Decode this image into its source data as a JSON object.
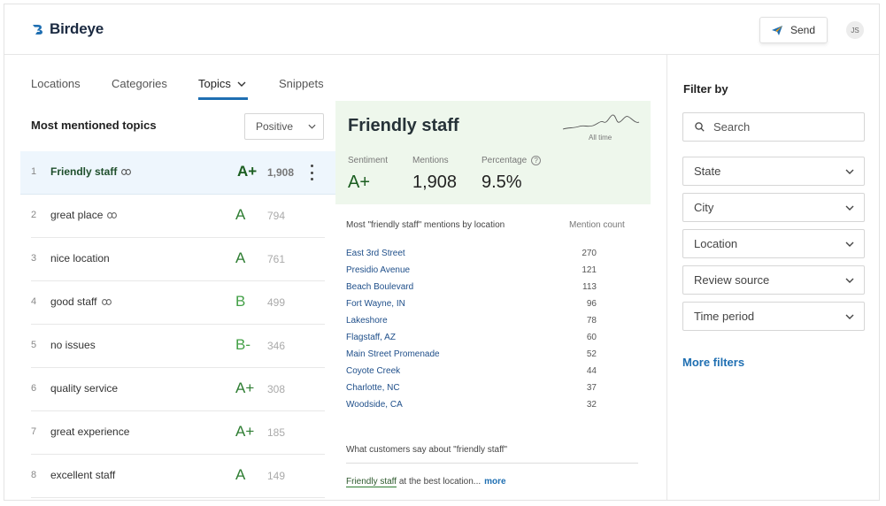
{
  "app": {
    "brand": "Birdeye",
    "accent": "#1f6fb2"
  },
  "header": {
    "send_label": "Send",
    "avatar_initials": "JS"
  },
  "tabs": [
    {
      "label": "Locations"
    },
    {
      "label": "Categories"
    },
    {
      "label": "Topics"
    },
    {
      "label": "Snippets"
    }
  ],
  "active_tab": "Topics",
  "list": {
    "title": "Most mentioned topics",
    "sentiment_filter": "Positive",
    "topics": [
      {
        "num": "1",
        "name": "Friendly staff",
        "grade": "A+",
        "count": "1,908",
        "linked": true
      },
      {
        "num": "2",
        "name": "great place",
        "grade": "A",
        "count": "794",
        "linked": true
      },
      {
        "num": "3",
        "name": "nice location",
        "grade": "A",
        "count": "761",
        "linked": false
      },
      {
        "num": "4",
        "name": "good staff",
        "grade": "B",
        "count": "499",
        "linked": true
      },
      {
        "num": "5",
        "name": "no issues",
        "grade": "B-",
        "count": "346",
        "linked": false
      },
      {
        "num": "6",
        "name": "quality service",
        "grade": "A+",
        "count": "308",
        "linked": false
      },
      {
        "num": "7",
        "name": "great experience",
        "grade": "A+",
        "count": "185",
        "linked": false
      },
      {
        "num": "8",
        "name": "excellent staff",
        "grade": "A",
        "count": "149",
        "linked": false
      }
    ]
  },
  "detail": {
    "title": "Friendly staff",
    "spark_label": "All time",
    "sentiment_label": "Sentiment",
    "sentiment_value": "A+",
    "mentions_label": "Mentions",
    "mentions_value": "1,908",
    "percentage_label": "Percentage",
    "percentage_value": "9.5%",
    "locations_header": "Most \"friendly staff\" mentions by location",
    "count_header": "Mention count",
    "locations": [
      {
        "name": "East 3rd Street",
        "count": "270"
      },
      {
        "name": "Presidio Avenue",
        "count": "121"
      },
      {
        "name": "Beach Boulevard",
        "count": "113"
      },
      {
        "name": "Fort Wayne, IN",
        "count": "96"
      },
      {
        "name": "Lakeshore",
        "count": "78"
      },
      {
        "name": "Flagstaff, AZ",
        "count": "60"
      },
      {
        "name": "Main Street Promenade",
        "count": "52"
      },
      {
        "name": "Coyote Creek",
        "count": "44"
      },
      {
        "name": "Charlotte, NC",
        "count": "37"
      },
      {
        "name": "Woodside, CA",
        "count": "32"
      }
    ],
    "say_title": "What customers say about \"friendly staff\"",
    "snippet_highlight": "Friendly staff",
    "snippet_rest": " at the best location...",
    "snippet_more": "more"
  },
  "filters": {
    "title": "Filter by",
    "search_placeholder": "Search",
    "dropdowns": [
      "State",
      "City",
      "Location",
      "Review source",
      "Time period"
    ],
    "more_filters": "More filters"
  },
  "icons": {
    "logo": "birdeye-logo-icon",
    "send": "paper-plane-icon",
    "search": "search-icon",
    "chevron": "chevron-down-icon",
    "link": "link-icon",
    "kebab": "kebab-menu-icon",
    "info": "info-icon"
  }
}
